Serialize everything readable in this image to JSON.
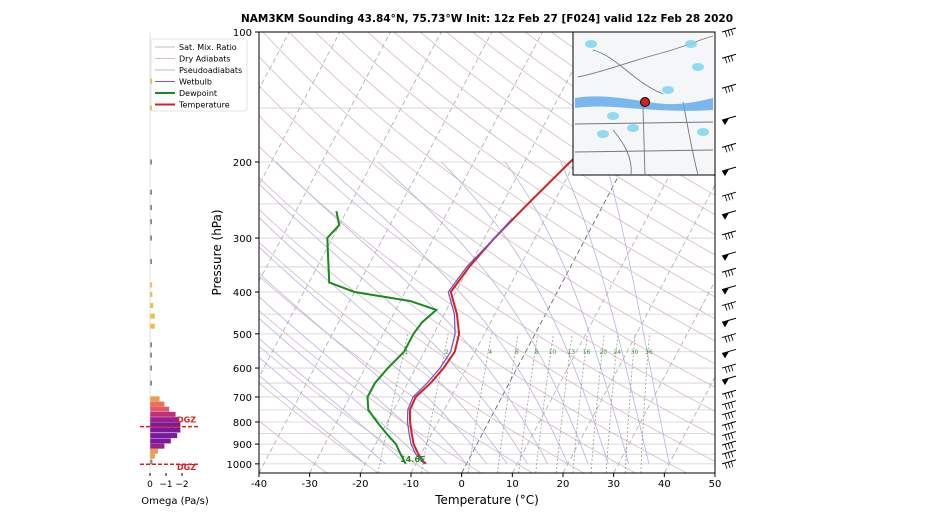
{
  "chart_data": {
    "type": "skew-t sounding",
    "title": "NAM3KM Sounding 43.84°N, 75.73°W Init: 12z Feb 27 [F024] valid 12z Feb 28 2020",
    "xlabel": "Temperature (°C)",
    "ylabel": "Pressure (hPa)",
    "x_ticks": [
      "-40",
      "-30",
      "-20",
      "-10",
      "0",
      "10",
      "20",
      "30",
      "40",
      "50"
    ],
    "y_ticks": [
      "100",
      "200",
      "300",
      "400",
      "500",
      "600",
      "700",
      "800",
      "900",
      "1000"
    ],
    "xlim": [
      -40,
      50
    ],
    "ylim_hpa": [
      1050,
      100
    ],
    "y_scale": "log",
    "skew_deg_per_decade": 45,
    "legend": {
      "placement": "top-left",
      "entries": [
        {
          "label": "Sat. Mix. Ratio",
          "color": "#bfbfbf"
        },
        {
          "label": "Dry Adiabats",
          "color": "#d9b8c4"
        },
        {
          "label": "Pseudoadiabats",
          "color": "#b7b4dc"
        },
        {
          "label": "Wetbulb",
          "color": "#6a5acd"
        },
        {
          "label": "Dewpoint",
          "color": "#1a8a1a"
        },
        {
          "label": "Temperature",
          "color": "#d62020"
        }
      ]
    },
    "mix_ratio_labels": [
      "1",
      "2",
      "4",
      "6",
      "8",
      "10",
      "13",
      "16",
      "20",
      "24",
      "30",
      "36"
    ],
    "series": [
      {
        "name": "Temperature",
        "color": "#d62020",
        "points": [
          [
            1000,
            -8
          ],
          [
            975,
            -9.5
          ],
          [
            950,
            -10.5
          ],
          [
            925,
            -11.5
          ],
          [
            900,
            -12.5
          ],
          [
            850,
            -14
          ],
          [
            800,
            -15.5
          ],
          [
            750,
            -16.8
          ],
          [
            700,
            -17
          ],
          [
            650,
            -15.5
          ],
          [
            600,
            -14.5
          ],
          [
            550,
            -14
          ],
          [
            500,
            -15
          ],
          [
            450,
            -17.5
          ],
          [
            400,
            -21
          ],
          [
            350,
            -20
          ],
          [
            300,
            -18
          ],
          [
            250,
            -15
          ],
          [
            200,
            -11
          ],
          [
            150,
            -5
          ],
          [
            120,
            -1
          ],
          [
            100,
            2
          ]
        ]
      },
      {
        "name": "Wetbulb",
        "color": "#6a5acd",
        "points": [
          [
            1000,
            -8.3
          ],
          [
            950,
            -11
          ],
          [
            900,
            -13
          ],
          [
            850,
            -14.5
          ],
          [
            800,
            -16
          ],
          [
            750,
            -17.2
          ],
          [
            700,
            -17.5
          ],
          [
            650,
            -16.2
          ],
          [
            600,
            -15.2
          ],
          [
            550,
            -14.8
          ],
          [
            500,
            -15.8
          ],
          [
            450,
            -18
          ],
          [
            400,
            -21.5
          ],
          [
            350,
            -20.5
          ],
          [
            300,
            -18
          ],
          [
            270,
            -16.5
          ]
        ]
      },
      {
        "name": "Dewpoint",
        "color": "#1a8a1a",
        "points": [
          [
            1000,
            -12
          ],
          [
            950,
            -14
          ],
          [
            900,
            -16
          ],
          [
            850,
            -19
          ],
          [
            800,
            -22
          ],
          [
            750,
            -25
          ],
          [
            700,
            -26.5
          ],
          [
            650,
            -26.5
          ],
          [
            600,
            -25.5
          ],
          [
            550,
            -24
          ],
          [
            500,
            -24
          ],
          [
            470,
            -23.5
          ],
          [
            440,
            -22
          ],
          [
            420,
            -28
          ],
          [
            400,
            -40
          ],
          [
            380,
            -46
          ],
          [
            300,
            -51
          ],
          [
            280,
            -50
          ],
          [
            260,
            -52
          ]
        ]
      }
    ],
    "surface_label": "14.6F",
    "omega_panel": {
      "xlabel": "Omega (Pa/s)",
      "x_ticks": [
        "0",
        "−1",
        "−2"
      ],
      "dgz_label": "DGZ",
      "bars": [
        {
          "hPa": 990,
          "omega": -0.15,
          "color": "#888888"
        },
        {
          "hPa": 960,
          "omega": -0.3,
          "color": "#e8a050"
        },
        {
          "hPa": 935,
          "omega": -0.5,
          "color": "#e8a050"
        },
        {
          "hPa": 910,
          "omega": -0.9,
          "color": "#9a208a"
        },
        {
          "hPa": 885,
          "omega": -1.3,
          "color": "#7a1a9a"
        },
        {
          "hPa": 860,
          "omega": -1.7,
          "color": "#7a1a9a"
        },
        {
          "hPa": 835,
          "omega": -1.9,
          "color": "#7a1a9a"
        },
        {
          "hPa": 812,
          "omega": -1.9,
          "color": "#7a1a9a"
        },
        {
          "hPa": 790,
          "omega": -1.8,
          "color": "#9a208a"
        },
        {
          "hPa": 768,
          "omega": -1.6,
          "color": "#c0307a"
        },
        {
          "hPa": 747,
          "omega": -1.2,
          "color": "#e05a6a"
        },
        {
          "hPa": 727,
          "omega": -0.9,
          "color": "#e8705a"
        },
        {
          "hPa": 707,
          "omega": -0.6,
          "color": "#e8a050"
        },
        {
          "hPa": 650,
          "omega": -0.1,
          "color": "#888888"
        },
        {
          "hPa": 600,
          "omega": -0.1,
          "color": "#888888"
        },
        {
          "hPa": 560,
          "omega": -0.1,
          "color": "#888888"
        },
        {
          "hPa": 530,
          "omega": -0.1,
          "color": "#888888"
        },
        {
          "hPa": 480,
          "omega": -0.3,
          "color": "#f0c040"
        },
        {
          "hPa": 455,
          "omega": -0.3,
          "color": "#f0c040"
        },
        {
          "hPa": 430,
          "omega": -0.2,
          "color": "#f0c040"
        },
        {
          "hPa": 405,
          "omega": -0.15,
          "color": "#f0c040"
        },
        {
          "hPa": 385,
          "omega": -0.1,
          "color": "#f0c040"
        },
        {
          "hPa": 340,
          "omega": -0.1,
          "color": "#888888"
        },
        {
          "hPa": 300,
          "omega": -0.1,
          "color": "#888888"
        },
        {
          "hPa": 275,
          "omega": -0.1,
          "color": "#888888"
        },
        {
          "hPa": 255,
          "omega": -0.1,
          "color": "#888888"
        },
        {
          "hPa": 235,
          "omega": -0.1,
          "color": "#888888"
        },
        {
          "hPa": 200,
          "omega": -0.1,
          "color": "#888888"
        },
        {
          "hPa": 150,
          "omega": -0.08,
          "color": "#f0c040"
        },
        {
          "hPa": 130,
          "omega": -0.08,
          "color": "#f0c040"
        }
      ]
    },
    "wind_barbs_hpa": [
      100,
      115,
      135,
      160,
      185,
      210,
      240,
      265,
      295,
      330,
      360,
      395,
      430,
      470,
      510,
      555,
      600,
      640,
      690,
      730,
      770,
      815,
      860,
      905,
      950,
      1000
    ],
    "inset_map": {
      "placement": "top-right",
      "marker_color": "#d62020"
    }
  }
}
